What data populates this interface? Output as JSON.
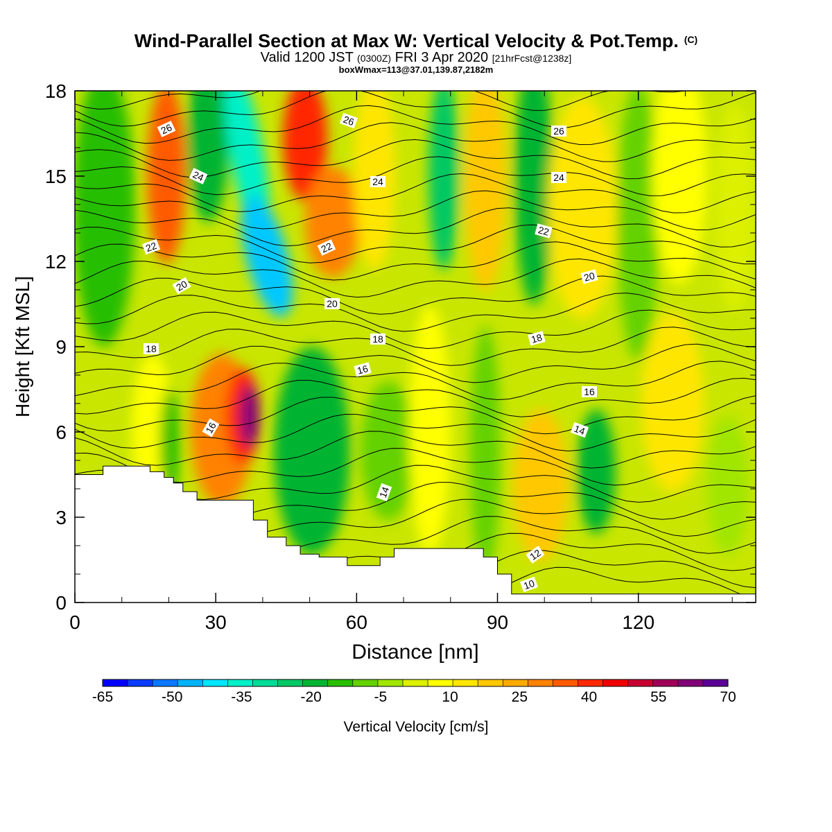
{
  "header": {
    "title": "Wind-Parallel Section at Max W: Vertical Velocity & Pot.Temp.",
    "copyright": "(C)",
    "valid_prefix": "Valid 1200 JST",
    "valid_z": "(0300Z)",
    "valid_date": "FRI 3 Apr 2020",
    "forecast": "[21hrFcst@1238z]",
    "boxinfo": "boxWmax=113@37.01,139.87,2182m"
  },
  "chart_data": {
    "type": "heatmap",
    "xlabel": "Distance [nm]",
    "ylabel": "Height [Kft MSL]",
    "xlim": [
      0,
      145
    ],
    "ylim": [
      0,
      18
    ],
    "x_ticks": [
      "0",
      "30",
      "60",
      "90",
      "120"
    ],
    "y_ticks": [
      "0",
      "3",
      "6",
      "9",
      "12",
      "15",
      "18"
    ],
    "colorbar": {
      "label": "Vertical Velocity [cm/s]",
      "tick_labels": [
        "-65",
        "-50",
        "-35",
        "-20",
        "-5",
        "10",
        "25",
        "40",
        "55",
        "70"
      ],
      "colors": [
        "#0000ff",
        "#0a3cff",
        "#0a78ff",
        "#00b4ff",
        "#00e6ff",
        "#00f0c8",
        "#00dc96",
        "#00c864",
        "#00b432",
        "#28be00",
        "#64d200",
        "#a0e600",
        "#dcf000",
        "#ffff00",
        "#ffe600",
        "#ffc800",
        "#ffaa00",
        "#ff8200",
        "#ff5a00",
        "#ff2800",
        "#f00000",
        "#c80032",
        "#a0005a",
        "#820078",
        "#5a0096"
      ]
    },
    "theta_contour_labels": [
      "10",
      "12",
      "14",
      "16",
      "18",
      "20",
      "22",
      "24",
      "26"
    ],
    "terrain_profile": [
      [
        0,
        4.5
      ],
      [
        6,
        4.5
      ],
      [
        6,
        4.8
      ],
      [
        16,
        4.8
      ],
      [
        16,
        4.6
      ],
      [
        19,
        4.6
      ],
      [
        19,
        4.4
      ],
      [
        21,
        4.4
      ],
      [
        21,
        4.2
      ],
      [
        23,
        4.2
      ],
      [
        23,
        3.9
      ],
      [
        26,
        3.9
      ],
      [
        26,
        3.6
      ],
      [
        38,
        3.6
      ],
      [
        38,
        2.9
      ],
      [
        41,
        2.9
      ],
      [
        41,
        2.3
      ],
      [
        45,
        2.3
      ],
      [
        45,
        2.0
      ],
      [
        48,
        2.0
      ],
      [
        48,
        1.7
      ],
      [
        52,
        1.7
      ],
      [
        52,
        1.6
      ],
      [
        58,
        1.6
      ],
      [
        58,
        1.3
      ],
      [
        65,
        1.3
      ],
      [
        65,
        1.6
      ],
      [
        68,
        1.6
      ],
      [
        68,
        1.9
      ],
      [
        87,
        1.9
      ],
      [
        87,
        1.6
      ],
      [
        90,
        1.6
      ],
      [
        90,
        1.0
      ],
      [
        93,
        1.0
      ],
      [
        93,
        0.3
      ],
      [
        145,
        0.3
      ]
    ]
  }
}
